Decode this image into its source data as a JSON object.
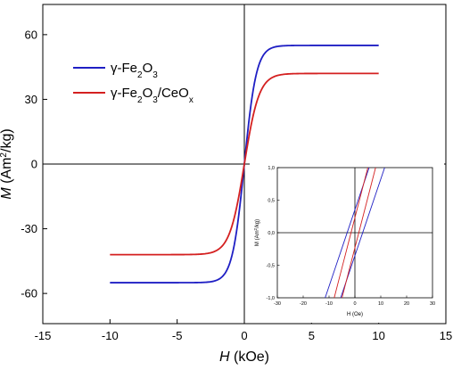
{
  "chart_data": [
    {
      "type": "line",
      "xlabel": {
        "italic": "H",
        "rest": " (kOe)"
      },
      "ylabel": {
        "italic": "M",
        "rest": " (Am",
        "sup": "2",
        "tail": "/kg)"
      },
      "xlim": [
        -15,
        15
      ],
      "ylim": [
        -74,
        74
      ],
      "xticks": [
        "-15",
        "-10",
        "-5",
        "0",
        "5",
        "10",
        "15"
      ],
      "yticks": [
        "-60",
        "-30",
        "0",
        "30",
        "60"
      ],
      "xtick_values": [
        -15,
        -10,
        -5,
        0,
        5,
        10,
        15
      ],
      "ytick_values": [
        -60,
        -30,
        0,
        30,
        60
      ],
      "grid": false,
      "legend_position": "upper-left",
      "series": [
        {
          "name": "γ-Fe2O3",
          "name_parts": {
            "a": "γ-Fe",
            "s1": "2",
            "b": "O",
            "s2": "3",
            "c": "",
            "s3": ""
          },
          "color": "#1f1fc4",
          "Ms": 55,
          "h0": 0.9,
          "x": [
            -10,
            -5,
            -2,
            -1,
            -0.5,
            0,
            0.5,
            1,
            2,
            5,
            10
          ],
          "y": [
            -55,
            -53.5,
            -47,
            -38,
            -27,
            0,
            27,
            38,
            47,
            53.5,
            55
          ]
        },
        {
          "name": "γ-Fe2O3/CeOx",
          "name_parts": {
            "a": "γ-Fe",
            "s1": "2",
            "b": "O",
            "s2": "3",
            "c": "/CeO",
            "s3": "x"
          },
          "color": "#d42020",
          "Ms": 42,
          "h0": 1.1,
          "x": [
            -10,
            -5,
            -2,
            -1,
            -0.5,
            0,
            0.5,
            1,
            2,
            5,
            10
          ],
          "y": [
            -42,
            -40.5,
            -35,
            -27,
            -18,
            0,
            18,
            27,
            35,
            40.5,
            42
          ]
        }
      ]
    },
    {
      "type": "line",
      "inset": true,
      "xlabel": "H (Oe)",
      "ylabel": {
        "italic": "",
        "rest": "M (Am",
        "sup": "2",
        "tail": "/kg)"
      },
      "xlim": [
        -30,
        30
      ],
      "ylim": [
        -1.0,
        1.0
      ],
      "xticks": [
        "-30",
        "-20",
        "-10",
        "0",
        "10",
        "20",
        "30"
      ],
      "yticks": [
        "1,0",
        "0,5",
        "0,0",
        "-0,5",
        "-1,0"
      ],
      "xtick_values": [
        -30,
        -20,
        -10,
        0,
        10,
        20,
        30
      ],
      "ytick_values": [
        1.0,
        0.5,
        0.0,
        -0.5,
        -1.0
      ],
      "series": [
        {
          "color": "#1f1fc4",
          "branch": "upper",
          "x": [
            -11.5,
            5.5
          ],
          "y": [
            -1.0,
            1.0
          ]
        },
        {
          "color": "#1f1fc4",
          "branch": "lower",
          "x": [
            -5.5,
            11.5
          ],
          "y": [
            -1.0,
            1.0
          ]
        },
        {
          "color": "#d42020",
          "branch": "upper",
          "x": [
            -8.0,
            5.0
          ],
          "y": [
            -1.0,
            1.0
          ]
        },
        {
          "color": "#d42020",
          "branch": "lower",
          "x": [
            -5.0,
            8.0
          ],
          "y": [
            -1.0,
            1.0
          ]
        }
      ]
    }
  ]
}
